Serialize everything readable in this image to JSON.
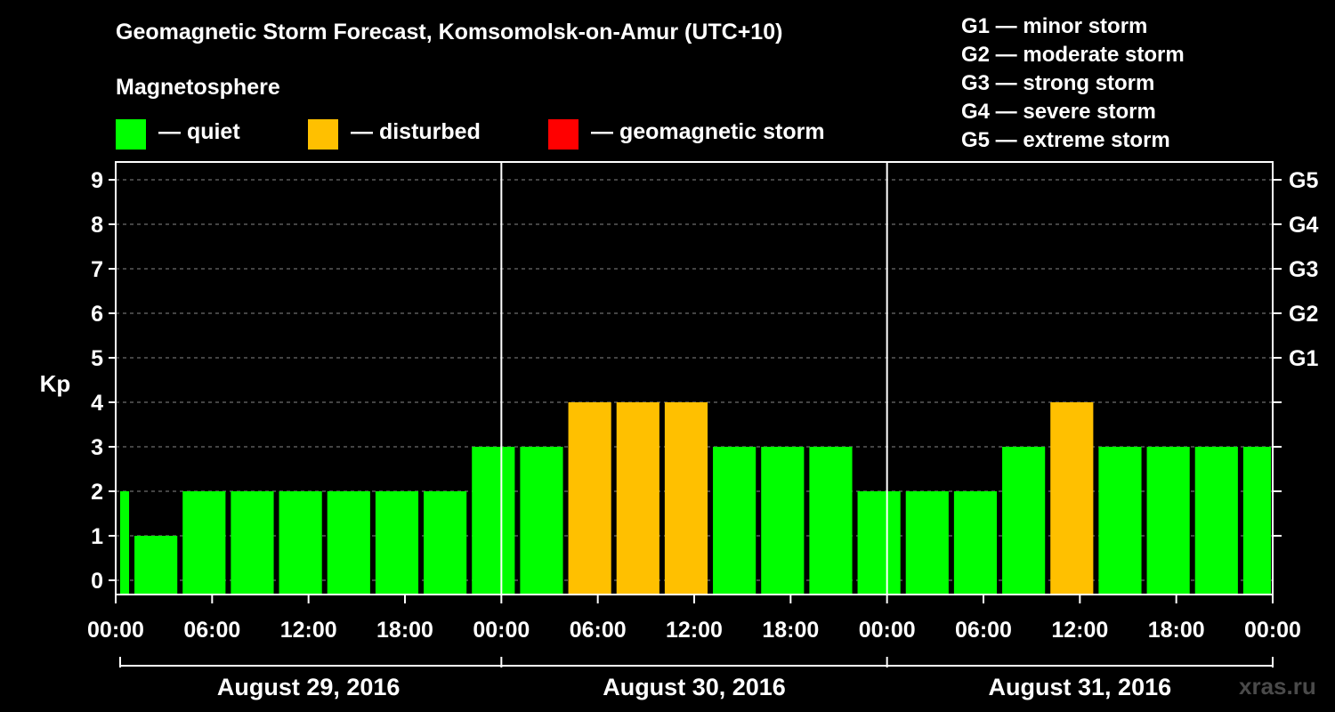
{
  "chart_data": {
    "type": "bar",
    "title": "Geomagnetic Storm Forecast, Komsomolsk-on-Amur (UTC+10)",
    "ylabel": "Kp",
    "ylim": [
      0,
      9
    ],
    "yticks": [
      0,
      1,
      2,
      3,
      4,
      5,
      6,
      7,
      8,
      9
    ],
    "right_axis_ticks": [
      {
        "kp": 5,
        "label": "G1"
      },
      {
        "kp": 6,
        "label": "G2"
      },
      {
        "kp": 7,
        "label": "G3"
      },
      {
        "kp": 8,
        "label": "G4"
      },
      {
        "kp": 9,
        "label": "G5"
      }
    ],
    "x_tick_labels": [
      "00:00",
      "06:00",
      "12:00",
      "18:00",
      "00:00",
      "06:00",
      "12:00",
      "18:00",
      "00:00",
      "06:00",
      "12:00",
      "18:00",
      "00:00"
    ],
    "days": [
      "August 29, 2016",
      "August 30, 2016",
      "August 31, 2016"
    ],
    "interval_hours": 3,
    "start_hour": -2,
    "values": [
      2,
      1,
      2,
      2,
      2,
      2,
      2,
      2,
      3,
      3,
      4,
      4,
      4,
      3,
      3,
      3,
      2,
      2,
      2,
      3,
      4,
      3,
      3,
      3,
      3
    ],
    "categories": [
      "quiet",
      "quiet",
      "quiet",
      "quiet",
      "quiet",
      "quiet",
      "quiet",
      "quiet",
      "quiet",
      "quiet",
      "disturbed",
      "disturbed",
      "disturbed",
      "quiet",
      "quiet",
      "quiet",
      "quiet",
      "quiet",
      "quiet",
      "quiet",
      "disturbed",
      "quiet",
      "quiet",
      "quiet",
      "quiet"
    ],
    "colors": {
      "quiet": "#00ff00",
      "disturbed": "#ffc000",
      "storm": "#ff0000"
    },
    "grid": true
  },
  "legend": {
    "heading": "Magnetosphere",
    "items": [
      {
        "label": "— quiet",
        "color": "#00ff00"
      },
      {
        "label": "— disturbed",
        "color": "#ffc000"
      },
      {
        "label": "— geomagnetic storm",
        "color": "#ff0000"
      }
    ]
  },
  "storm_scale": [
    "G1 — minor storm",
    "G2 — moderate storm",
    "G3 — strong storm",
    "G4 — severe storm",
    "G5 — extreme storm"
  ],
  "watermark": "xras.ru"
}
